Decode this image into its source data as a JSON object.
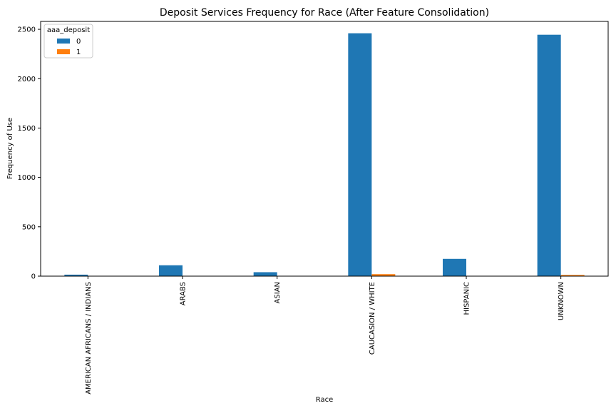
{
  "chart_data": {
    "type": "bar",
    "title": "Deposit Services Frequency for Race (After Feature Consolidation)",
    "xlabel": "Race",
    "ylabel": "Frequency of Use",
    "categories": [
      "AMERICAN AFRICANS / INDIANS",
      "ARABS",
      "ASIAN",
      "CAUCASION / WHITE",
      "HISPANIC",
      "UNKNOWN"
    ],
    "series": [
      {
        "name": "0",
        "color": "#1f77b4",
        "values": [
          15,
          110,
          40,
          2460,
          175,
          2445
        ]
      },
      {
        "name": "1",
        "color": "#ff7f0e",
        "values": [
          0,
          0,
          0,
          20,
          0,
          12
        ]
      }
    ],
    "ylim": [
      0,
      2580
    ],
    "yticks": [
      0,
      500,
      1000,
      1500,
      2000,
      2500
    ],
    "legend": {
      "title": "aaa_deposit",
      "placement": "top-left"
    },
    "grid": false
  }
}
